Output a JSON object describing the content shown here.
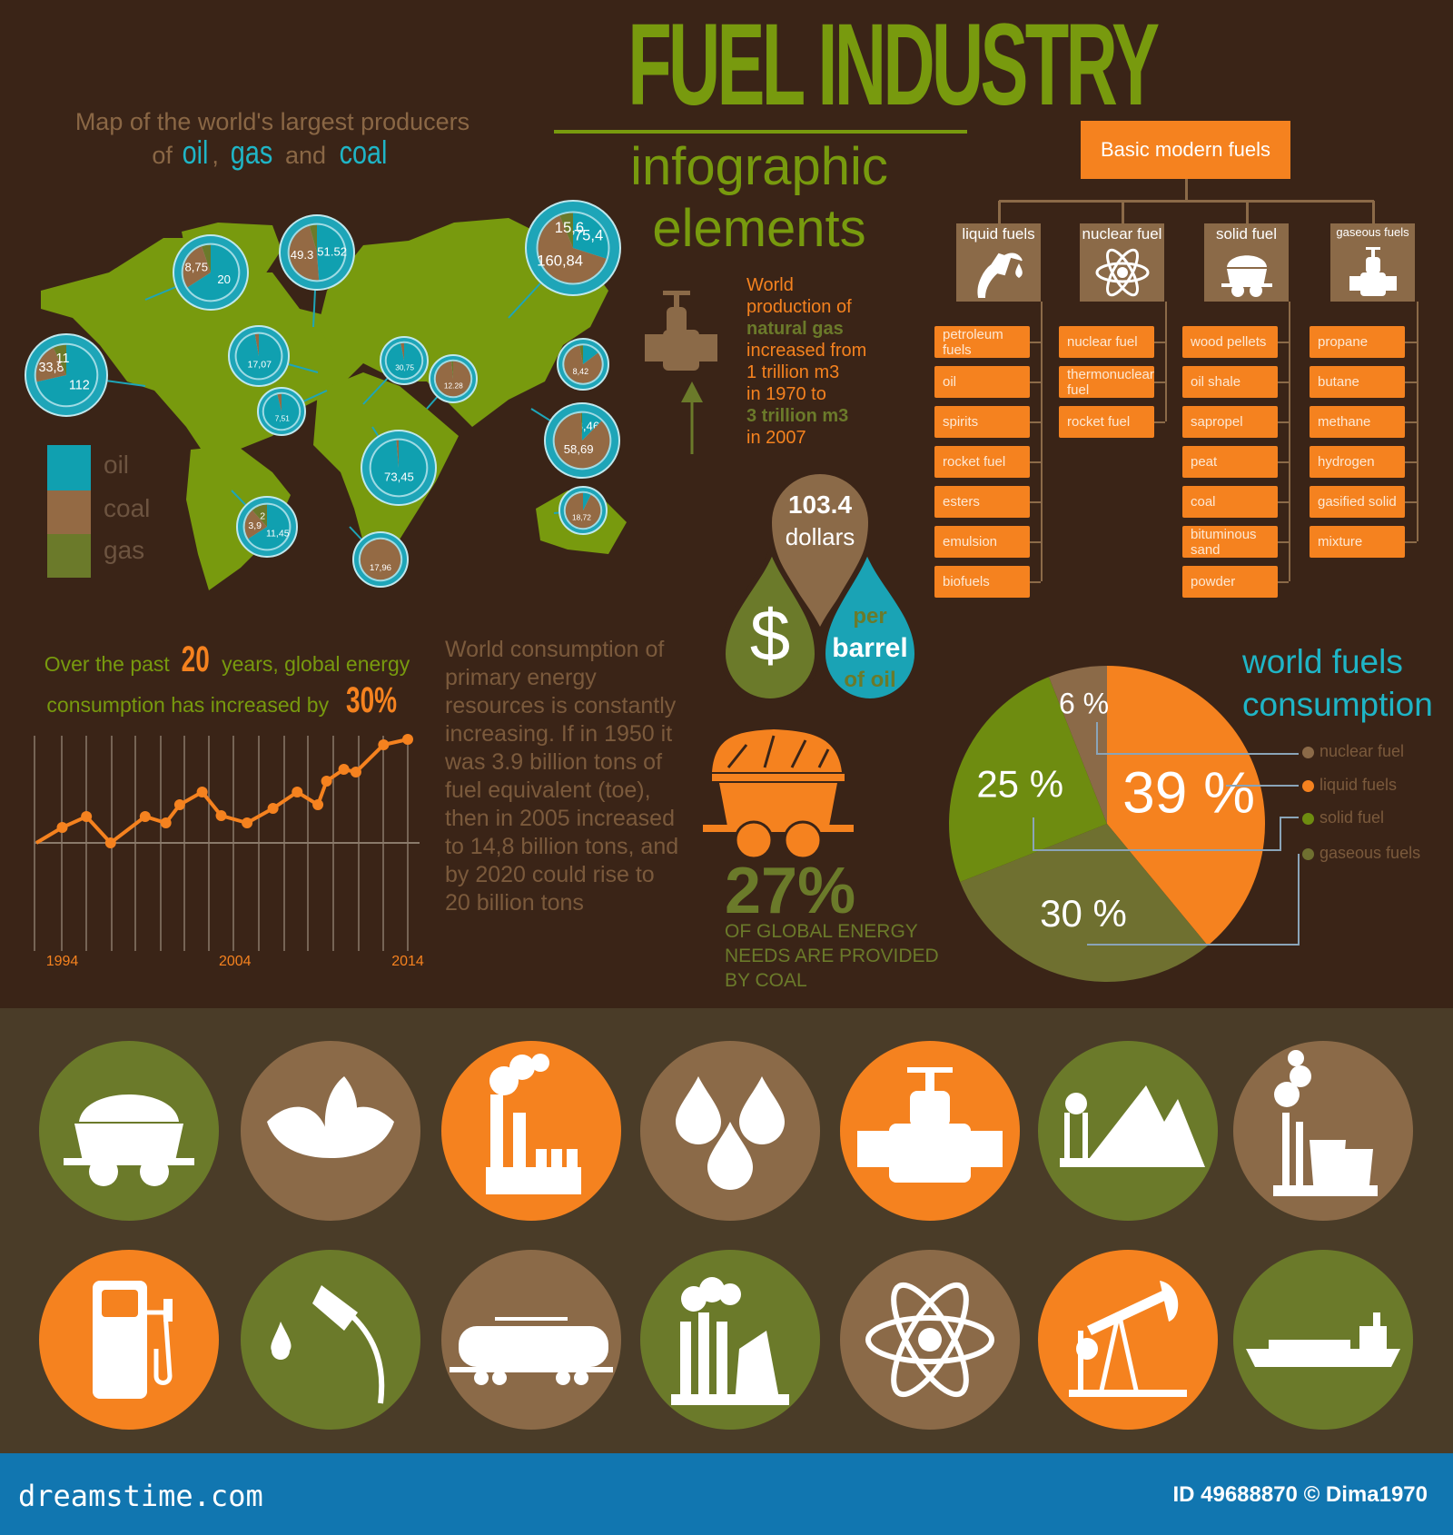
{
  "header": {
    "title": "FUEL INDUSTRY",
    "subtitle_1": "infographic",
    "subtitle_2": "elements"
  },
  "colors": {
    "background": "#3a2417",
    "green": "#789a0e",
    "orange": "#f5821f",
    "brown": "#8b6a48",
    "cyan": "#1fb5c6",
    "olive": "#6b7a2a",
    "footer": "#1176b0"
  },
  "map": {
    "caption_1": "Map of the world's largest producers",
    "caption_of": "of",
    "caption_oil": "oil",
    "caption_comma": ",",
    "caption_gas": "gas",
    "caption_and": "and",
    "caption_coal": "coal",
    "legend": [
      {
        "label": "oil",
        "color": "#10a0b0"
      },
      {
        "label": "coal",
        "color": "#946a44"
      },
      {
        "label": "gas",
        "color": "#6b7a2a"
      }
    ],
    "bubbles": [
      {
        "oil": 112,
        "coal": 33.8,
        "gas": 11,
        "labels": {
          "oil": "112",
          "coal": "33,8",
          "gas": "11"
        }
      },
      {
        "oil": 20,
        "coal": 8.75,
        "gas": 1.6,
        "labels": {
          "oil": "20",
          "coal": "8,75"
        }
      },
      {
        "oil": 51.52,
        "coal": 49.3,
        "gas": 4.6,
        "labels": {
          "oil": "51.52",
          "coal": "49.3"
        }
      },
      {
        "oil": 75.4,
        "coal": 160.84,
        "gas": 15.6,
        "labels": {
          "oil": "75,4",
          "coal": "160,84",
          "gas": "15,6"
        }
      },
      {
        "oil": 17.07,
        "coal": 0.5,
        "gas": 0,
        "labels": {
          "oil": "17,07"
        }
      },
      {
        "oil": 7.51,
        "coal": 0.3,
        "gas": 0,
        "labels": {
          "oil": "7,51"
        }
      },
      {
        "oil": 30.75,
        "coal": 1,
        "gas": 0,
        "labels": {
          "oil": "30,75"
        }
      },
      {
        "oil": 0,
        "coal": 12.28,
        "gas": 0.2,
        "labels": {
          "coal": "12.28"
        }
      },
      {
        "oil": 1.5,
        "coal": 8.42,
        "gas": 0.3,
        "labels": {
          "coal": "8,42"
        }
      },
      {
        "oil": 8.46,
        "coal": 58.69,
        "gas": 0.5,
        "labels": {
          "oil": "8,46",
          "coal": "58,69"
        }
      },
      {
        "oil": 73.45,
        "coal": 1,
        "gas": 0,
        "labels": {
          "oil": "73,45"
        }
      },
      {
        "oil": 1.5,
        "coal": 18.72,
        "gas": 0,
        "labels": {
          "coal": "18,72"
        }
      },
      {
        "oil": 11.45,
        "coal": 3.9,
        "gas": 2,
        "labels": {
          "oil": "11,45",
          "coal": "3,9",
          "gas": "2"
        }
      },
      {
        "oil": 0,
        "coal": 17.96,
        "gas": 0,
        "labels": {
          "coal": "17,96"
        }
      }
    ]
  },
  "gas_fact": {
    "l1": "World",
    "l2": "production of",
    "l3": "natural gas",
    "l4": "increased from",
    "l5": "1 trillion m3",
    "l6": "in 1970 to",
    "l7": "3 trillion m3",
    "l8": "in 2007"
  },
  "oil_price": {
    "value": "103.4",
    "unit": "dollars",
    "symbol": "$",
    "per": "per",
    "barrel": "barrel",
    "of_oil": "of oil"
  },
  "tree": {
    "root": "Basic modern fuels",
    "categories": [
      {
        "label": "liquid fuels",
        "icon": "fuel-nozzle-icon",
        "items": [
          "petroleum fuels",
          "oil",
          "spirits",
          "rocket fuel",
          "esters",
          "emulsion",
          "biofuels"
        ]
      },
      {
        "label": "nuclear fuel",
        "icon": "atom-icon",
        "items": [
          "nuclear fuel",
          "thermonuclear fuel",
          "rocket fuel"
        ]
      },
      {
        "label": "solid fuel",
        "icon": "coal-cart-icon",
        "items": [
          "wood pellets",
          "oil shale",
          "sapropel",
          "peat",
          "coal",
          "bituminous sand",
          "powder"
        ]
      },
      {
        "label": "gaseous fuels",
        "icon": "valve-icon",
        "items": [
          "propane",
          "butane",
          "methane",
          "hydrogen",
          "gasified solid",
          "mixture"
        ]
      }
    ]
  },
  "growth": {
    "pre": "Over the past",
    "n1": "20",
    "mid": "years, global energy",
    "l2": "consumption has increased by",
    "n2": "30%"
  },
  "chart_data": [
    {
      "type": "line",
      "title": "",
      "xlabel": "",
      "ylabel": "",
      "grid": "vertical",
      "x_ticks": [
        "1994",
        "2004",
        "2014"
      ],
      "x": [
        1992.5,
        1994,
        1995.4,
        1996.8,
        1998.8,
        2000,
        2000.8,
        2002.1,
        2003.2,
        2004.7,
        2006.2,
        2007.6,
        2008.8,
        2009.3,
        2010.3,
        2011,
        2012.6,
        2014
      ],
      "y": [
        0,
        17,
        29,
        0,
        29,
        22,
        42,
        56,
        30,
        22,
        38,
        56,
        42,
        68,
        81,
        78,
        108,
        114
      ],
      "xlim": [
        1992.5,
        2014
      ],
      "ylim": [
        -116,
        118
      ],
      "color": "#f5821f"
    },
    {
      "type": "pie",
      "title": "world fuels consumption",
      "slices": [
        {
          "name": "liquid fuels",
          "value": 39,
          "label": "39 %",
          "color": "#f5821f"
        },
        {
          "name": "gaseous fuels",
          "value": 30,
          "label": "30 %",
          "color": "#6f7030"
        },
        {
          "name": "solid fuel",
          "value": 25,
          "label": "25 %",
          "color": "#6e8c10"
        },
        {
          "name": "nuclear fuel",
          "value": 6,
          "label": "6 %",
          "color": "#8b6a48"
        }
      ],
      "legend": [
        "nuclear fuel",
        "liquid fuels",
        "solid fuel",
        "gaseous fuels"
      ],
      "legend_placement": "right"
    }
  ],
  "consumption_text": "World consumption of primary energy resources  is constantly increasing. If in 1950 it was 3.9 billion tons of fuel equivalent (toe), then in 2005 increased to 14,8 billion tons, and by 2020 could rise to 20 billion tons",
  "coal": {
    "pct": "27%",
    "l1": "OF GLOBAL ENERGY",
    "l2": "NEEDS ARE PROVIDED",
    "l3": "BY COAL"
  },
  "icons": {
    "row1": [
      {
        "icon": "coal-cart-icon",
        "color": "#6b7a2a"
      },
      {
        "icon": "leaves-icon",
        "color": "#8b6a48"
      },
      {
        "icon": "factory-icon",
        "color": "#f5821f"
      },
      {
        "icon": "currency-drops-icon",
        "color": "#8b6a48"
      },
      {
        "icon": "pipe-valve-icon",
        "color": "#f5821f"
      },
      {
        "icon": "mine-icon",
        "color": "#6b7a2a"
      },
      {
        "icon": "power-plant-icon",
        "color": "#8b6a48"
      }
    ],
    "row2": [
      {
        "icon": "fuel-pump-icon",
        "color": "#f5821f"
      },
      {
        "icon": "fuel-nozzle-icon",
        "color": "#6b7a2a"
      },
      {
        "icon": "tank-car-icon",
        "color": "#8b6a48"
      },
      {
        "icon": "industrial-plant-icon",
        "color": "#6b7a2a"
      },
      {
        "icon": "atom-icon",
        "color": "#8b6a48"
      },
      {
        "icon": "oil-pump-jack-icon",
        "color": "#f5821f"
      },
      {
        "icon": "tanker-ship-icon",
        "color": "#6b7a2a"
      }
    ]
  },
  "footer": {
    "brand": "dreamstime.com",
    "id": "ID 49688870 © Dima1970"
  }
}
